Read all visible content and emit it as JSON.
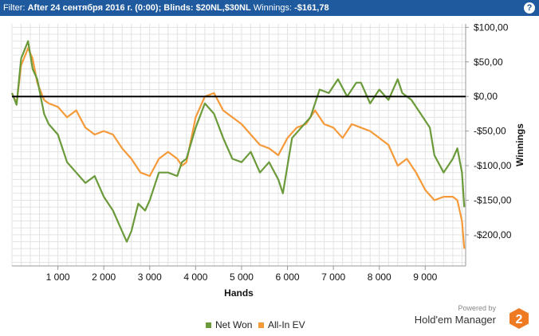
{
  "filter_bar": {
    "prefix": "Filter:",
    "filter_text": "After 24 сентября 2016 г. (0:00); Blinds: $20NL,$30NL",
    "winnings_label": "Winnings:",
    "winnings_value": "-$161,78",
    "help_glyph": "?"
  },
  "colors": {
    "net_won": "#6a9a3a",
    "all_in_ev": "#f59a3a",
    "header_bg": "#1f5a9e"
  },
  "branding": {
    "powered_by": "Powered by",
    "product": "Hold'em Manager",
    "logo_glyph": "2"
  },
  "chart_data": {
    "type": "line",
    "xlabel": "Hands",
    "ylabel": "Winnings",
    "xlim": [
      0,
      9880
    ],
    "ylim": [
      -245,
      105
    ],
    "x_ticks": [
      1000,
      2000,
      3000,
      4000,
      5000,
      6000,
      7000,
      8000,
      9000
    ],
    "x_tick_labels": [
      "1 000",
      "2 000",
      "3 000",
      "4 000",
      "5 000",
      "6 000",
      "7 000",
      "8 000",
      "9 000"
    ],
    "y_ticks": [
      100,
      50,
      0,
      -50,
      -100,
      -150,
      -200
    ],
    "y_tick_labels": [
      "$100,00",
      "$50,00",
      "$0,00",
      "-$50,00",
      "-$100,00",
      "-$150,00",
      "-$200,00"
    ],
    "grid": true,
    "legend_position": "bottom-center",
    "series": [
      {
        "name": "Net Won",
        "x": [
          0,
          100,
          200,
          350,
          450,
          550,
          700,
          800,
          1000,
          1200,
          1400,
          1600,
          1800,
          2000,
          2200,
          2400,
          2500,
          2600,
          2750,
          2900,
          3000,
          3200,
          3400,
          3600,
          3700,
          3800,
          4000,
          4200,
          4400,
          4600,
          4800,
          5000,
          5200,
          5400,
          5600,
          5800,
          5900,
          6100,
          6300,
          6500,
          6700,
          6900,
          7100,
          7300,
          7500,
          7600,
          7800,
          8000,
          8200,
          8400,
          8500,
          8700,
          8900,
          9100,
          9200,
          9400,
          9600,
          9700,
          9800,
          9850
        ],
        "y": [
          5,
          -12,
          55,
          80,
          40,
          25,
          -25,
          -40,
          -55,
          -95,
          -110,
          -125,
          -115,
          -145,
          -165,
          -195,
          -210,
          -195,
          -155,
          -165,
          -150,
          -110,
          -110,
          -115,
          -95,
          -90,
          -45,
          -10,
          -25,
          -60,
          -90,
          -95,
          -80,
          -110,
          -95,
          -120,
          -140,
          -60,
          -45,
          -30,
          10,
          5,
          25,
          0,
          20,
          20,
          -10,
          10,
          -5,
          25,
          5,
          -5,
          -25,
          -45,
          -85,
          -110,
          -90,
          -75,
          -110,
          -160
        ]
      },
      {
        "name": "All-In EV",
        "x": [
          0,
          100,
          200,
          350,
          450,
          550,
          700,
          800,
          1000,
          1200,
          1400,
          1600,
          1800,
          2000,
          2200,
          2400,
          2600,
          2800,
          3000,
          3200,
          3400,
          3600,
          3700,
          3800,
          4000,
          4200,
          4400,
          4600,
          4800,
          5000,
          5200,
          5400,
          5600,
          5800,
          6000,
          6200,
          6400,
          6600,
          6800,
          7000,
          7200,
          7400,
          7600,
          7800,
          8000,
          8200,
          8400,
          8600,
          8800,
          9000,
          9200,
          9400,
          9600,
          9700,
          9800,
          9850
        ],
        "y": [
          5,
          -10,
          45,
          70,
          55,
          20,
          -5,
          -10,
          -15,
          -30,
          -20,
          -45,
          -55,
          -50,
          -55,
          -75,
          -90,
          -110,
          -115,
          -90,
          -80,
          -90,
          -100,
          -95,
          -30,
          0,
          5,
          -20,
          -30,
          -40,
          -55,
          -70,
          -75,
          -85,
          -60,
          -45,
          -40,
          -20,
          -40,
          -45,
          -60,
          -40,
          -45,
          -50,
          -60,
          -70,
          -100,
          -90,
          -110,
          -135,
          -150,
          -145,
          -145,
          -150,
          -180,
          -220
        ]
      }
    ]
  }
}
